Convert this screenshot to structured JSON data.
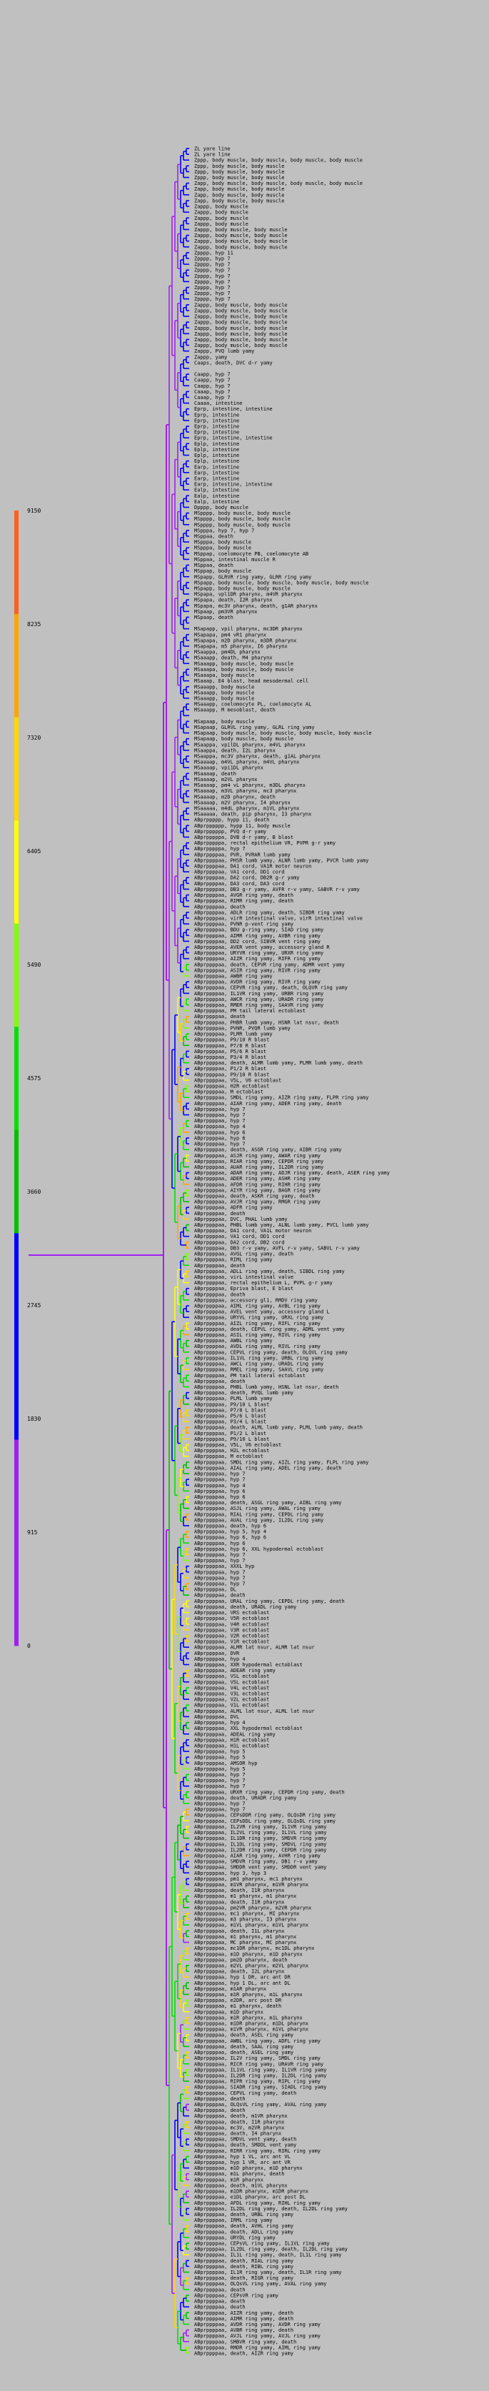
{
  "color_scale": {
    "labels": [
      "0",
      "915",
      "1830",
      "2745",
      "3660",
      "4575",
      "5490",
      "6405",
      "7320",
      "8235",
      "9150"
    ],
    "colors": [
      "#a020f0",
      "#a020f0",
      "#0000ff",
      "#0000ff",
      "#00c000",
      "#00e000",
      "#80ff00",
      "#ffff00",
      "#ffd700",
      "#ffa500",
      "#ff6020"
    ]
  },
  "leaves": [
    "ZL yare line",
    "ZL yare line",
    "Zppp, body muscle, body muscle, body muscle, body muscle",
    "Zppp, body muscle, body muscle",
    "Zppp, body muscle, body muscle",
    "Zppp, body muscle, body muscle",
    "Zapp, body muscle, body muscle, body muscle, body muscle",
    "Zapp, body muscle, body muscle",
    "Zapp, body muscle, body muscle",
    "Zapp, body muscle, body muscle",
    "Zappp, body muscle",
    "Zappp, body muscle",
    "Zappp, body muscle",
    "Zappp, body muscle",
    "Zappp, body muscle, body muscle",
    "Zappp, body muscle, body muscle",
    "Zappp, body muscle, body muscle",
    "Zappp, body muscle, body muscle",
    "Zpppp, hyp 11",
    "Zpppp, hyp 7",
    "Zpppp, hyp 7",
    "Zpppp, hyp 7",
    "Zpppp, hyp 7",
    "Zpppp, hyp 7",
    "Zpppp, hyp 7",
    "Zpppp, hyp 7",
    "Zpppp, hyp 7",
    "Zappp, body muscle, body muscle",
    "Zappp, body muscle, body muscle",
    "Zappp, body muscle, body muscle",
    "Zappp, body muscle, body muscle",
    "Zappp, body muscle, body muscle",
    "Zappp, body muscle, body muscle",
    "Zappp, body muscle, body muscle",
    "Zappp, body muscle, body muscle",
    "Zappp, PVQ lumb yamy",
    "Zappp, yamy",
    "Caaps, death, DVC d-r yamy",
    "",
    "Caapp, hyp 7",
    "Caapp, hyp 7",
    "Caapp, hyp 7",
    "Caaap, hyp 7",
    "Caaap, hyp 7",
    "Caaaa, intestine",
    "Eprp, intestine, intestine",
    "Eprp, intestine",
    "Eprp, intestine",
    "Eprp, intestine",
    "Eprp, intestine",
    "Eprp, intestine, intestine",
    "Eplp, intestine",
    "Eplp, intestine",
    "Eplp, intestine",
    "Eplp, intestine",
    "Earp, intestine",
    "Earp, intestine",
    "Earp, intestine",
    "Earp, intestine, intestine",
    "Ealp, intestine",
    "Ealp, intestine",
    "Ealp, intestine",
    "Dpppp, body muscle",
    "MSpppp, body muscle, body muscle",
    "MSpppp, body muscle, body muscle",
    "MSpppp, body muscle, body muscle",
    "MSpppa, hyp 7, hyp 7",
    "MSppaa, death",
    "MSpppa, body muscle",
    "MSpppa, body muscle",
    "MSppap, coelomocyte PB, coelomocyte AB",
    "MSppaa, intestinal muscle R",
    "MSppaa, death",
    "MSppap, body muscle",
    "MSpapp, GLRVR ring yamy, GLRR ring yamy",
    "MSpapp, body muscle, body muscle, body muscle, body muscle",
    "MSpapp, body muscle, body muscle",
    "MSpapa, vpl1DR pharynx, m4VR pharynx",
    "MSpapa, death, I2R pharynx",
    "MSpapa, mc3V pharynx, death, g1AR pharynx",
    "MSpaap, pm3VR pharynx",
    "MSpaap, death",
    "",
    "MSapapp, vpil pharynx, mc3DR pharynx",
    "MSapapa, pm4 vR1 pharynx",
    "MSapapa, m2D pharynx, m3DR pharynx",
    "MSapapa, m5 pharynx, I6 pharynx",
    "MSaappa, pm4DL pharynx",
    "MSaaapp, death, M4 pharynx",
    "MSaaapp, body muscle, body muscle",
    "MSaaapa, body muscle, body muscle",
    "MSaaapa, body muscle",
    "MSaaap, E4 blast, head mesodermal cell",
    "MSaaapp, body muscle",
    "MSaaapp, body muscle",
    "MSaaapp, body muscle",
    "MSaaapp, coelomocyte PL, coelomocyte AL",
    "MSaaapp, M mesoblast, death",
    "",
    "MSapaap, body muscle",
    "MSapaap, GLRVL ring yamy, GLRL ring yamy",
    "MSapaap, body muscle, body muscle, body muscle, body muscle",
    "MSapaap, body muscle, body muscle",
    "MSaappa, vpilDL pharynx, m4VL pharynx",
    "MSaappa, death, I2L pharynx",
    "MSaappa, mc3V pharynx, death, g1AL pharynx",
    "MSaaaap, m4VL pharynx, m4VL pharynx",
    "MSaaaap, vpi1DL pharynx",
    "MSaaaap, death",
    "MSaaaap, m2VL pharynx",
    "MSaaaap, pm4 vL pharynx, m3DL pharynx",
    "MSaaaap, m3VL pharynx, mc3 pharynx",
    "MSaaaap, m2D pharynx, death",
    "MSaaaap, m2V pharynx, I4 pharynx",
    "MSaaaaa, m4dL pharynx, m1VL pharynx",
    "MSaaaaa, death, pip pharynx, I3 pharynx",
    "ABprppppp, hypp 11, death",
    "ABprpppppp, hypp 11, body muscle",
    "ABprpppppp, PVQ d-r yamy",
    "ABprpppppa, DVB d-r yamy, B blast",
    "ABprpppppa, rectal epithelium VR, PVPR g-r yamy",
    "ABprpppppa, hyp 7",
    "ABprppppaa, PVR, PVRAR lumb yamy",
    "ABprppppaa, PHSR lumb yamy, ALNR lumb yamy, PVCR lumb yamy",
    "ABprppppaa, DA1 cord, VA1R motor neuron",
    "ABprppppaa, VA1 cord, DD1 cord",
    "ABprppppaa, DA2 cord, DB2R g-r yamy",
    "ABprppppaa, DA3 cord, DA3 cord",
    "ABprppppaa, DB3 g-r yamy, AVFR r-v yamy, SABVR r-v yamy",
    "ABprppppaa, AVGR ring yamy, death",
    "ABprppppaa, RIMR ring yamy, death",
    "ABprppppaa, death",
    "ABprppppaa, ADLR ring yamy, death, SIBDR ring yamy",
    "ABprppppaa, virR intestinal valve, virR intestinal valve",
    "ABprppppaa, PVNR p-vent ring yamy",
    "ABprppppaa, BDU p-ring yamy, SIAD ring yamy",
    "ABprppppaa, AIMR ring yamy, AVBR ring yamy",
    "ABprppppaa, DD2 cord, SIBVR vent ring yamy",
    "ABprppppaa, AVER vent yamy, accessory gland R",
    "ABprppppaa, URYVR ring yamy, URXR ring yamy",
    "ABprppppaa, AIZR ring yamy, RIFR ring yamy",
    "ABprppppaa, death, CEPVR ring yamy, ADMR vent yamy",
    "ABprppppaa, ASIR ring yamy, RIVR ring yamy",
    "ABprppppaa, AWBR ring yamy",
    "ABprppppaa, AVDR ring yamy, RIVR ring yamy",
    "ABprppppaa, CEPVR ring yamy, death, OLQVR ring yamy",
    "ABprppppaa, IL1VR ring yamy, URBR ring yamy",
    "ABprppppaa, AWCR ring yamy, URADR ring yamy",
    "ABprppppaa, RMER ring yamy, SAAVR ring yamy",
    "ABprppppaa, PM tail lateral ectoblast",
    "ABprppppaa, death",
    "ABprppppaa, PHBR lumb yamy, HSNR lat nsur, death",
    "ABprppppaa, PVNR, PVQR lumb yamy",
    "ABprppppaa, PLMR lumb yamy",
    "ABprppppaa, P9/10 R blast",
    "ABprppppaa, P7/8 R blast",
    "ABprppppaa, P5/6 R blast",
    "ABprppppaa, P3/4 R blast",
    "ABprppppaa, death, ALMR lumb yamy, PLMR lumb yamy, death",
    "ABprppppaa, P1/2 R blast",
    "ABprppppaa, P9/10 R blast",
    "ABprppppaa, V5L, V6 ectoblast",
    "ABprppppaa, H2R ectoblast",
    "ABprppppaa, M ectoblast",
    "ABprppppaa, SMDL ring yamy, AIZR ring yamy, FLPR ring yamy",
    "ABprppppaa, AIAR ring yamy, ADER ring yamy, death",
    "ABprppppaa, hyp 7",
    "ABprppppaa, hyp 7",
    "ABprppppaa, hyp 7",
    "ABprppppaa, hyp 4",
    "ABprppppaa, hyp 6",
    "ABprppppaa, hyp 6",
    "ABprppppaa, hyp 7",
    "ABprppppaa, death, ASGR ring yamy, AIBR ring yamy",
    "ABprppppaa, ASJR ring yamy, AWAR ring yamy",
    "ABprppppaa, RIAR ring yamy, CEPDR ring yamy",
    "ABprppppaa, AUAR ring yamy, IL2DR ring yamy",
    "ABprppppaa, ADAR ring yamy, ADJR ring yamy, death, ASER ring yamy",
    "ABprppppaa, ADER ring yamy, ASHR ring yamy",
    "ABprppppaa, AFDR ring yamy, RIHR ring yamy",
    "ABprppppaa, AIYR ring yamy, BAGR ring yamy",
    "ABprppppaa, death, ASKR ring yamy, death",
    "ABprppppaa, AVJR ring yamy, RMGR ring yamy",
    "ABprppppaa, ADFR ring yamy",
    "ABprppppaa, death",
    "ABprppppaa, DVC, PHAL lumb yamy",
    "ABprppppaa, PHBL lumb yamy, ALNL lumb yamy, PVCL lumb yamy",
    "ABprppppaa, DA1 cord, VA1L motor neuron",
    "ABprppppaa, VA1 cord, DD1 cord",
    "ABprppppaa, DA2 cord, DB2 cord",
    "ABprppppaa, DB3 r-v yamy, AVFL r-v yamy, SABVL r-v yamy",
    "ABprppppaa, AVGL ring yamy, death",
    "ABprppppaa, RIML ring yamy",
    "ABprppppaa, death",
    "ABprppppaa, ADLL ring yamy, death, SIBDL ring yamy",
    "ABprppppaa, virL intestinal valve",
    "ABprppppaa, rectal epithelium L, PVPL g-r yamy",
    "ABprppppaa, Epriva blast, E blast",
    "ABprppppaa, death",
    "ABprppppaa, accessory gl1, RMDV ring yamy",
    "ABprppppaa, AIML ring yamy, AVBL ring yamy",
    "ABprppppaa, AVEL vent yamy, accessory gland L",
    "ABprppppaa, URYVL ring yamy, URXL ring yamy",
    "ABprppppaa, AIZL ring yamy, RIFL ring yamy",
    "ABprppppaa, death, CEPVL ring yamy, ADML vent yamy",
    "ABprppppaa, ASIL ring yamy, RIVL ring yamy",
    "ABprppppaa, AWBL ring yamy",
    "ABprppppaa, AVDL ring yamy, RIVL ring yamy",
    "ABprppppaa, CEPVL ring yamy, death, OLQVL ring yamy",
    "ABprppppaa, IL1VL ring yamy, URBL ring yamy",
    "ABprppppaa, AWCL ring yamy, URADL ring yamy",
    "ABprppppaa, RMEL ring yamy, SAAVL ring yamy",
    "ABprppppaa, PM tail lateral ectoblast",
    "ABprppppaa, death",
    "ABprppppaa, PHBL lumb yamy, HSNL lat nsur, death",
    "ABprppppaa, death, PVQL lumb yamy",
    "ABprppppaa, PLML lumb yamy",
    "ABprppppaa, P9/10 L blast",
    "ABprppppaa, P7/8 L blast",
    "ABprppppaa, P5/6 L blast",
    "ABprppppaa, P3/4 L blast",
    "ABprppppaa, death, ALML lumb yamy, PLML lumb yamy, death",
    "ABprppppaa, P1/2 L blast",
    "ABprppppaa, P9/10 L blast",
    "ABprppppaa, V5L, V6 ectoblast",
    "ABprppppaa, H2L ectoblast",
    "ABprppppaa, M ectoblast",
    "ABprppppaa, SMDL ring yamy, AIZL ring yamy, FLPL ring yamy",
    "ABprppppaa, AIAL ring yamy, ADEL ring yamy, death",
    "ABprppppaa, hyp 7",
    "ABprppppaa, hyp 7",
    "ABprppppaa, hyp 4",
    "ABprppppaa, hyp 6",
    "ABprppppaa, hyp 6",
    "ABprppppaa, death, ASGL ring yamy, AIBL ring yamy",
    "ABprppppaa, ASJL ring yamy, AWAL ring yamy",
    "ABprppppaa, RIAL ring yamy, CEPDL ring yamy",
    "ABprppppaa, AUAL ring yamy, IL2DL ring yamy",
    "ABprppppaa, death, hyp 6",
    "ABprppppaa, hyp 5, hyp 4",
    "ABprppppaa, hyp 6, hyp 6",
    "ABprppppaa, hyp 6",
    "ABprppppaa, hyp 6, XXL hypodermal ectoblast",
    "ABprppppaa, hyp 7",
    "ABprppppaa, hyp 7",
    "ABprppppaa, XXXL hyp",
    "ABprppppaa, hyp 7",
    "ABprppppaa, hyp 7",
    "ABprppppaa, hyp 7",
    "ABprppppaa, DL",
    "ABprppppaa, death",
    "ABprppppaa, URAL ring yamy, CEPDL ring yamy, death",
    "ABprppppaa, death, URADL ring yamy",
    "ABprppppaa, VRS ectoblast",
    "ABprppppaa, V5R ectoblast",
    "ABprppppaa, V4R ectoblast",
    "ABprppppaa, V3R ectoblast",
    "ABprppppaa, V2R ectoblast",
    "ABprppppaa, V1R ectoblast",
    "ABprppppaa, ALMR lat nsur, ALMR lat nsur",
    "ABprppppaa, DVR",
    "ABprppppaa, hyp 4",
    "ABprppppaa, XXR hypodermal ectoblast",
    "ABprppppaa, ADEAR ring yamy",
    "ABprppppaa, VSL ectoblast",
    "ABprppppaa, V5L ectoblast",
    "ABprppppaa, V4L ectoblast",
    "ABprppppaa, V3L ectoblast",
    "ABprppppaa, V2L ectoblast",
    "ABprppppaa, V1L ectoblast",
    "ABprppppaa, ALML lat nsur, ALML lat nsur",
    "ABprppppaa, DVL",
    "ABprppppaa, hyp 4",
    "ABprppppaa, XXL hypodermal ectoblast",
    "ABprppppaa, ADEAL ring yamy",
    "ABprppppaa, H1R ectoblast",
    "ABprppppaa, H1L ectoblast",
    "ABprppppaa, hyp 5",
    "ABprppppaa, hyp 5",
    "ABprppppaa, AMSOR hyp",
    "ABprppppaa, hyp 5",
    "ABprppppaa, hyp 7",
    "ABprppppaa, hyp 7",
    "ABprppppaa, hyp 7",
    "ABprppppaa, URXR ring yamy, CEPDR ring yamy, death",
    "ABprppppaa, death, URADR ring yamy",
    "ABprppppaa, hyp 7",
    "ABprppppaa, hyp 7",
    "ABprppppaa, CEPsDDR ring yamy, OLQsDR ring yamy",
    "ABprppppaa, CEPsDDL ring yamy, OLQsDL ring yamy",
    "ABprppppaa, IL2VR ring yamy, IL1VR ring yamy",
    "ABprppppaa, IL2VL ring yamy, IL1VL ring yamy",
    "ABprppppaa, IL1DR ring yamy, SMDVR ring yamy",
    "ABprppppaa, IL1DL ring yamy, SMDVL ring yamy",
    "ABprppppaa, IL2DR ring yamy, CEPDR ring yamy",
    "ABprppppaa, AIAR ring yamy, AVHR ring yamy",
    "ABprppppaa, SMDVR ring yamy, DB1 r-v yamy",
    "ABprppppaa, SMDDR vent yamy, SMDDR vent yamy",
    "ABprppppaa, hyp 3, hyp 3",
    "ABprppppaa, pm1 pharynx, mc1 pharynx",
    "ABprppppaa, m1VR pharynx, m1VR pharynx",
    "ABprppppaa, death, I1R pharynx",
    "ABprppppaa, m1 pharynx, m1 pharynx",
    "ABprppppaa, death, I1R pharynx",
    "ABprppppaa, pm2VR pharynx, m2VR pharynx",
    "ABprppppaa, mc1 pharynx, MI pharynx",
    "ABprppppaa, m3 pharynx, I3 pharynx",
    "ABprppppaa, m1VL pharynx, m1VL pharynx",
    "ABprppppaa, death, I1L pharynx",
    "ABprppppaa, m1 pharynx, m1 pharynx",
    "ABprppppaa, MC pharynx, MC pharynx",
    "ABprppppaa, mc1DR pharynx, mc1DL pharynx",
    "ABprppppaa, m1D pharynx, m1D pharynx",
    "ABprppppaa, pm2D pharynx, death",
    "ABprppppaa, m2VL pharynx, m2VL pharynx",
    "ABprppppaa, death, I2L pharynx",
    "ABprppppaa, hyp 1 DR, arc ant DR",
    "ABprppppaa, hyp 1 DL, arc ant DL",
    "ABprppppaa, m1AR pharynx",
    "ABprppppaa, m1R pharynx, m1L pharynx",
    "ABprppppaa, e2DR, arc post DR",
    "ABprppppaa, m1 pharynx, death",
    "ABprppppaa, m1D pharynx",
    "ABprppppaa, m1R pharynx, m1L pharynx",
    "ABprppppaa, m1DR pharynx, m1DL pharynx",
    "ABprppppaa, m1VR pharynx, m1VL pharynx",
    "ABprppppaa, death, ASEL ring yamy",
    "ABprppppaa, AWBL ring yamy, ADFL ring yamy",
    "ABprppppaa, death, SAAL ring yamy",
    "ABprppppaa, death, ASEL ring yamy",
    "ABprppppaa, IL2V ring yamy, SMDL ring yamy",
    "ABprppppaa, RICR ring yamy, URAVR ring yamy",
    "ABprppppaa, IL1VL ring yamy, IL1VR ring yamy",
    "ABprppppaa, IL2DR ring yamy, IL2DL ring yamy",
    "ABprppppaa, RIPR ring yamy, RIPL ring yamy",
    "ABprppppaa, SIADR ring yamy, SIADL ring yamy",
    "ABprppppaa, CEPVL ring yamy, death",
    "ABprppppaa, death",
    "ABprppppaa, OLQsVL ring yamy, AVAL ring yamy",
    "ABprppppaa, death",
    "ABprppppaa, death, m1VR pharynx",
    "ABprppppaa, death, I1R pharynx",
    "ABprppppaa, mc3V, m2VR pharynx",
    "ABprppppaa, death, I4 pharynx",
    "ABprppppaa, SMDVL vent yamy, death",
    "ABprppppaa, death, SMDDL vent yamy",
    "ABprppppaa, RIRR ring yamy, RIRL ring yamy",
    "ABprppppaa, hyp 1 VL, arc ant VL",
    "ABprppppaa, hyp 1 VR, arc ant VR",
    "ABprppppaa, m1D pharynx, m1D pharynx",
    "ABprppppaa, m1L pharynx, death",
    "ABprppppaa, m1R pharynx",
    "ABprppppaa, death, m1VL pharynx",
    "ABprppppaa, m1DR pharynx, m1DR pharynx",
    "ABprppppaa, e1DL pharynx, arc post DL",
    "ABprppppaa, AFDL ring yamy, RIHL ring yamy",
    "ABprppppaa, IL2DL ring yamy, death, IL2DL ring yamy",
    "ABprppppaa, death, URBL ring yamy",
    "ABprppppaa, IRML ring yamy",
    "ABprppppaa, death, AVHL ring yamy",
    "ABprppppaa, death, ADLL ring yamy",
    "ABprppppaa, URYDL ring yamy",
    "ABprppppaa, CEPsVL ring yamy, IL1VL ring yamy",
    "ABprppppaa, IL2DL ring yamy, death, IL2DL ring yamy",
    "ABprppppaa, IL1L ring yamy, death, IL1L ring yamy",
    "ABprppppaa, death, RIAL ring yamy",
    "ABprppppaa, death, RIBL ring yamy",
    "ABprppppaa, IL1R ring yamy, death, IL1R ring yamy",
    "ABprppppaa, death, RIGR ring yamy",
    "ABprppppaa, OLQsVL ring yamy, AVAL ring yamy",
    "ABprppppaa, death",
    "ABprppppaa, CEPsVR ring yamy",
    "ABprppppaa, death",
    "ABprppppaa, death",
    "ABprppppaa, AIZR ring yamy, death",
    "ABprppppaa, AIMR ring yamy, death",
    "ABprppppaa, AVDR ring yamy, AVDR ring yamy",
    "ABprppppaa, AVBR ring yamy, death",
    "ABprppppaa, AVJL ring yamy, AVJL ring yamy",
    "ABprppppaa, SMBVR ring yamy, death",
    "ABprppppaa, RMDR ring yamy, AIML ring yamy",
    "ABprppppaa, death, AIZR ring yamy"
  ]
}
